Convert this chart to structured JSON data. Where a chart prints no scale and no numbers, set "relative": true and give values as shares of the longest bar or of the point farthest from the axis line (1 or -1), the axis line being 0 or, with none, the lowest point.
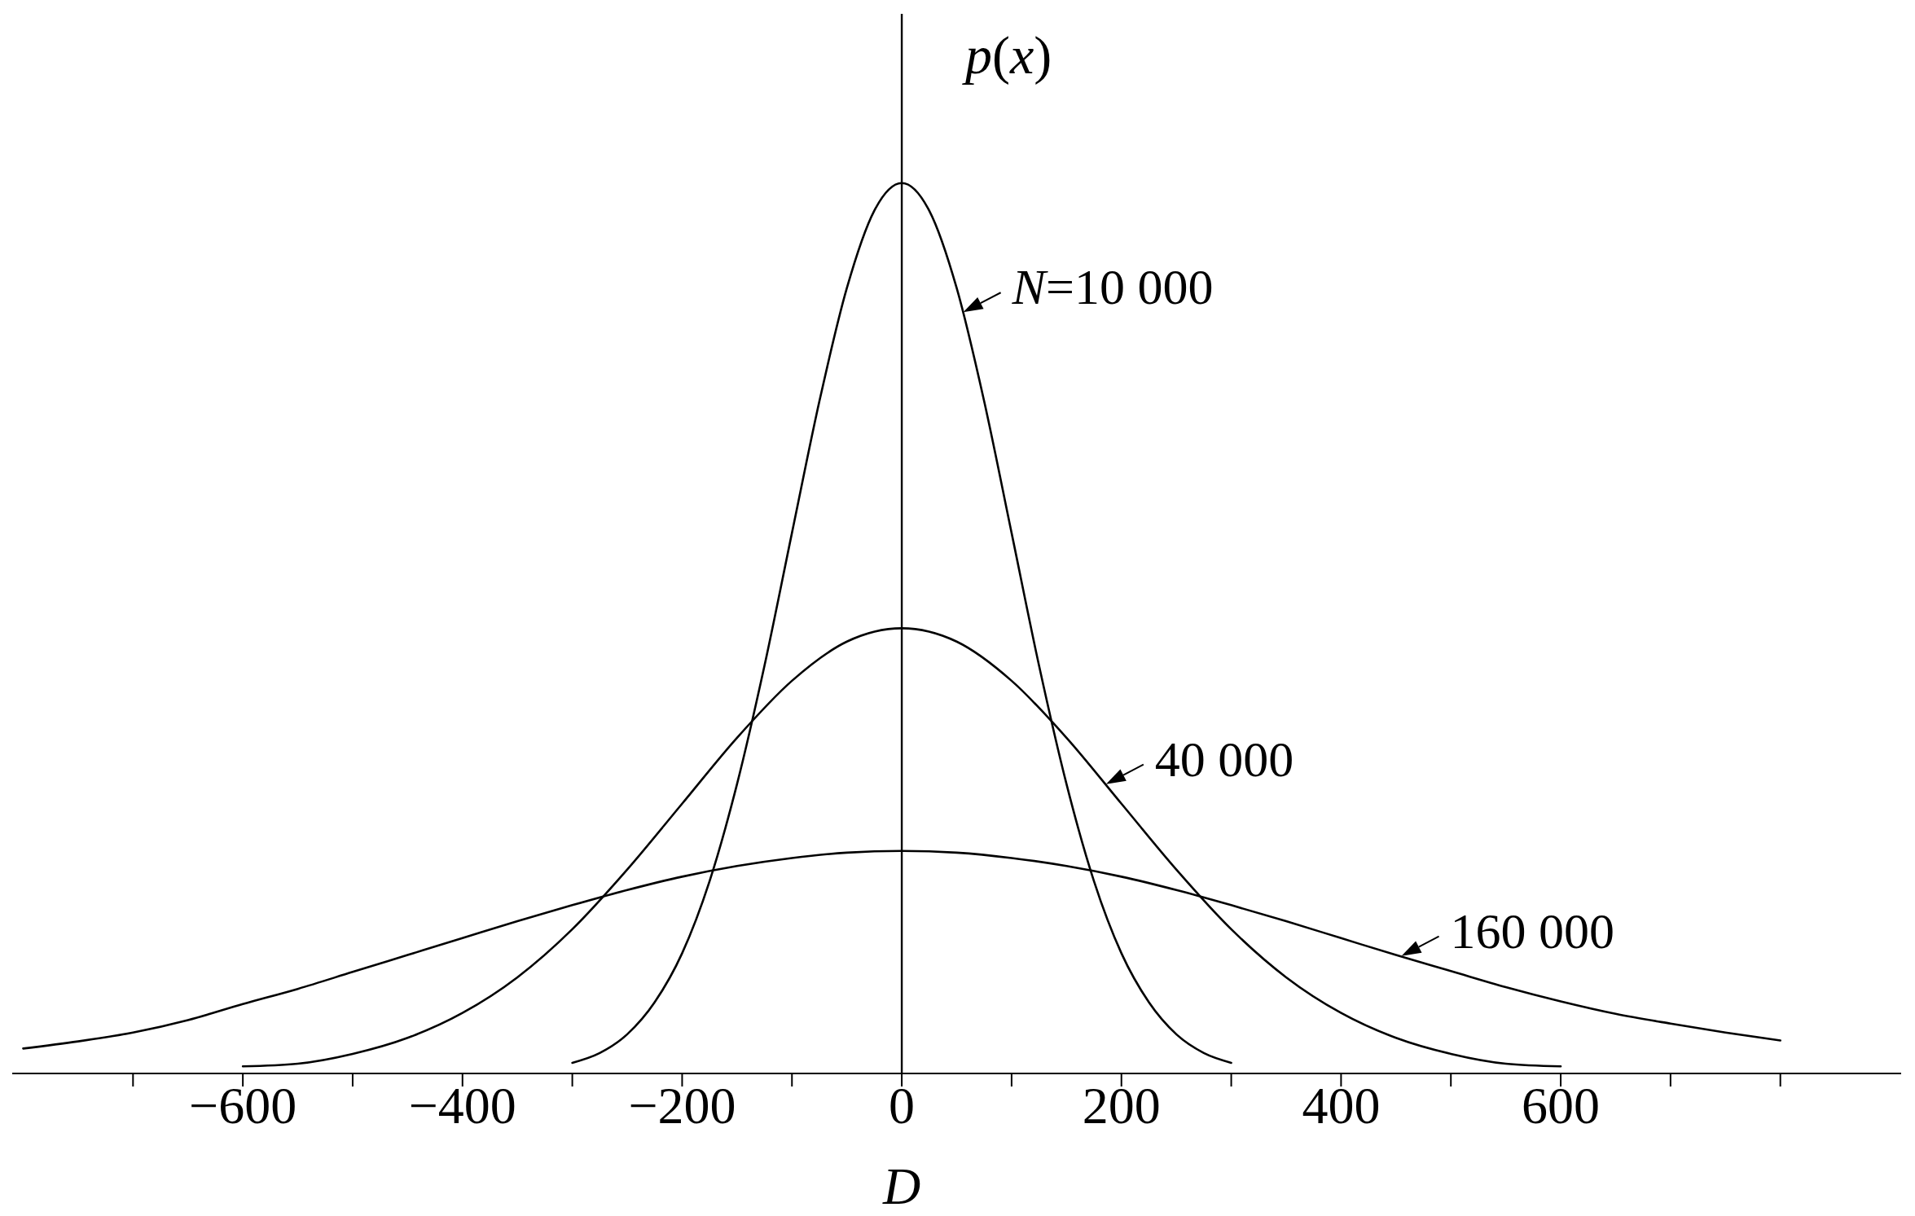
{
  "chart_data": {
    "type": "line",
    "relative": true,
    "xlabel": "D",
    "ylabel": "p(x)",
    "xlim": [
      -810,
      910
    ],
    "xticks": [
      {
        "value": -700,
        "label": null
      },
      {
        "value": -600,
        "label": "−600"
      },
      {
        "value": -500,
        "label": null
      },
      {
        "value": -400,
        "label": "−400"
      },
      {
        "value": -300,
        "label": null
      },
      {
        "value": -200,
        "label": "−200"
      },
      {
        "value": -100,
        "label": null
      },
      0,
      {
        "value": 100,
        "label": null
      },
      200,
      {
        "value": 300,
        "label": null
      },
      400,
      {
        "value": 500,
        "label": null
      },
      600,
      {
        "value": 700,
        "label": null
      },
      {
        "value": 800,
        "label": null
      }
    ],
    "series": [
      {
        "color": "#000000",
        "x": [
          -300,
          -275,
          -250,
          -225,
          -200,
          -175,
          -150,
          -125,
          -100,
          -75,
          -50,
          -25,
          0,
          25,
          50,
          75,
          100,
          125,
          150,
          175,
          200,
          225,
          250,
          275,
          300
        ],
        "values": [
          0.012,
          0.023,
          0.044,
          0.08,
          0.135,
          0.216,
          0.325,
          0.458,
          0.607,
          0.755,
          0.882,
          0.969,
          1,
          0.969,
          0.882,
          0.755,
          0.607,
          0.458,
          0.325,
          0.216,
          0.135,
          0.08,
          0.044,
          0.023,
          0.012
        ]
      },
      {
        "color": "#000000",
        "x": [
          -600,
          -550,
          -500,
          -450,
          -400,
          -350,
          -300,
          -250,
          -200,
          -150,
          -100,
          -50,
          0,
          50,
          100,
          150,
          200,
          250,
          300,
          350,
          400,
          450,
          500,
          550,
          600
        ],
        "values": [
          0.008,
          0.011,
          0.022,
          0.04,
          0.068,
          0.108,
          0.162,
          0.229,
          0.303,
          0.377,
          0.441,
          0.485,
          0.5,
          0.485,
          0.441,
          0.377,
          0.303,
          0.229,
          0.162,
          0.108,
          0.068,
          0.04,
          0.022,
          0.011,
          0.008
        ]
      },
      {
        "color": "#000000",
        "x": [
          -800,
          -750,
          -700,
          -650,
          -600,
          -550,
          -500,
          -450,
          -400,
          -350,
          -300,
          -250,
          -200,
          -150,
          -100,
          -50,
          0,
          50,
          100,
          150,
          200,
          250,
          300,
          350,
          400,
          450,
          500,
          550,
          600,
          650,
          700,
          750,
          800
        ],
        "values": [
          0.028,
          0.036,
          0.046,
          0.06,
          0.078,
          0.095,
          0.114,
          0.133,
          0.152,
          0.171,
          0.189,
          0.206,
          0.221,
          0.233,
          0.242,
          0.248,
          0.25,
          0.248,
          0.242,
          0.233,
          0.221,
          0.206,
          0.189,
          0.171,
          0.152,
          0.133,
          0.115,
          0.097,
          0.081,
          0.067,
          0.056,
          0.046,
          0.037
        ]
      }
    ],
    "annotations": [
      {
        "text": "N=10 000",
        "x": 56,
        "y": 0.855
      },
      {
        "text": "40 000",
        "x": 186,
        "y": 0.325
      },
      {
        "text": "160 000",
        "x": 455,
        "y": 0.132
      }
    ]
  }
}
